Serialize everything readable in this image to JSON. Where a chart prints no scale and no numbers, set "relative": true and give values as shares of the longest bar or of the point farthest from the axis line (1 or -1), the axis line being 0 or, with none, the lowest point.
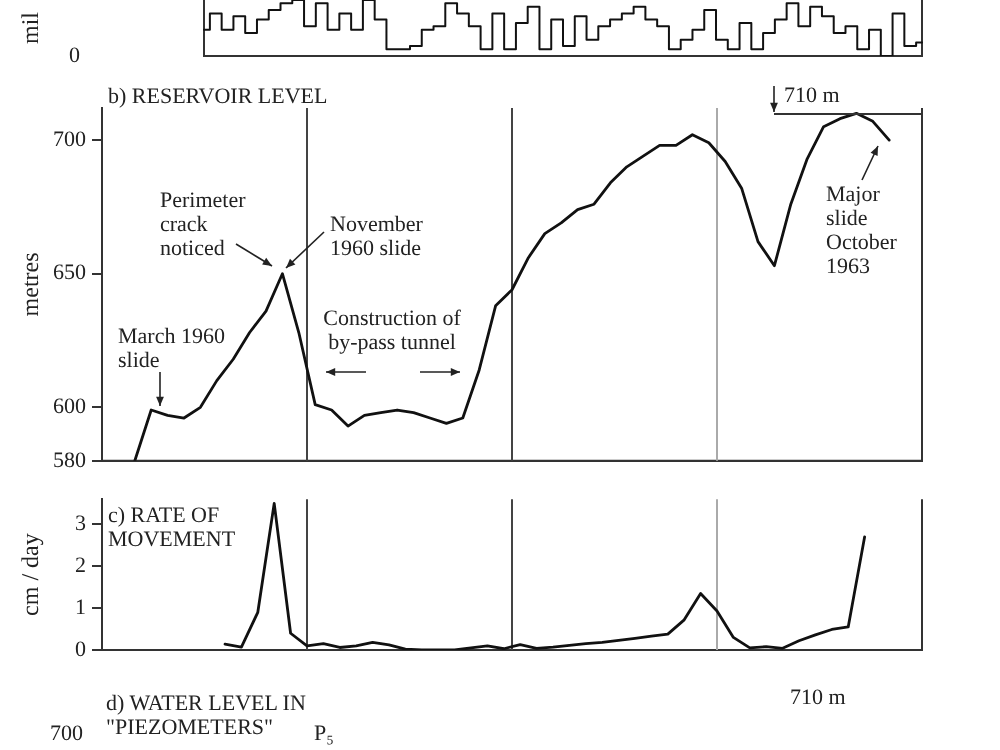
{
  "chart_data": [
    {
      "type": "step",
      "ylabel": "mil",
      "relative": true,
      "tick_labels": false,
      "color": "#111111",
      "annotations": [
        "0"
      ],
      "categories": [
        null,
        null,
        null,
        null,
        null,
        null,
        null,
        null,
        null,
        null,
        null,
        null,
        null,
        null,
        null,
        null,
        null,
        null,
        null,
        null,
        null,
        null,
        null,
        null,
        null,
        null,
        null,
        null,
        null,
        null,
        null,
        null,
        null,
        null,
        null,
        null,
        null,
        null,
        null,
        null,
        null,
        null,
        null,
        null,
        null,
        null,
        null,
        null,
        null,
        null,
        null,
        null,
        null,
        null,
        null,
        null,
        null,
        null,
        null,
        null,
        null,
        null
      ],
      "values": [
        0.47,
        0.76,
        0.47,
        0.71,
        0.41,
        0.65,
        0.82,
        0.94,
        1,
        0.53,
        0.94,
        0.47,
        0.76,
        0.47,
        1,
        0.65,
        0.12,
        0.12,
        0.18,
        0.47,
        0.53,
        0.94,
        0.76,
        0.53,
        0.12,
        0.76,
        0.12,
        0.59,
        0.88,
        0.12,
        0.65,
        0.18,
        0.71,
        0.29,
        0.53,
        0.65,
        0.76,
        0.88,
        0.65,
        0.53,
        0.12,
        0.29,
        0.47,
        0.82,
        0.29,
        0.12,
        0.59,
        0.12,
        0.41,
        0.65,
        0.94,
        0.53,
        0.88,
        0.71,
        0.41,
        0.53,
        0.12,
        0.47,
        0,
        0.76,
        0.18,
        0.24
      ]
    },
    {
      "type": "line",
      "title": "b) RESERVOIR LEVEL",
      "ylabel": "metres",
      "tick_labels": "y",
      "color": "#111111",
      "ylim": [
        580,
        712
      ],
      "yticks": [
        580,
        600,
        650,
        700
      ],
      "categories": [
        null,
        null,
        null,
        null,
        null,
        null,
        null,
        null,
        null,
        null,
        null,
        null,
        null,
        null,
        null,
        null,
        null,
        null,
        null,
        null,
        null,
        null,
        null,
        null,
        null,
        null,
        null,
        null,
        null,
        null,
        null,
        null,
        null,
        null,
        null,
        null,
        null,
        null,
        null,
        null,
        null,
        null,
        null,
        null,
        null,
        null,
        null,
        null,
        null,
        null,
        null
      ],
      "values": [
        null,
        null,
        580,
        599,
        597,
        596,
        600,
        610,
        618,
        628,
        636,
        650,
        628,
        601,
        599,
        593,
        597,
        598,
        599,
        598,
        596,
        594,
        596,
        614,
        638,
        644,
        656,
        665,
        669,
        674,
        676,
        684,
        690,
        694,
        698,
        698,
        702,
        699,
        692,
        682,
        662,
        653,
        676,
        693,
        705,
        708,
        710,
        707,
        700,
        null,
        null
      ],
      "annotations": [
        "March 1960 slide",
        "Perimeter crack noticed",
        "November 1960 slide",
        "Construction of by-pass tunnel",
        "Major slide October 1963",
        "710 m"
      ]
    },
    {
      "type": "line",
      "title": "c) RATE OF MOVEMENT",
      "ylabel": "cm / day",
      "tick_labels": "y",
      "color": "#111111",
      "ylim": [
        0,
        3.6
      ],
      "yticks": [
        0,
        1,
        2,
        3
      ],
      "categories": [
        null,
        null,
        null,
        null,
        null,
        null,
        null,
        null,
        null,
        null,
        null,
        null,
        null,
        null,
        null,
        null,
        null,
        null,
        null,
        null,
        null,
        null,
        null,
        null,
        null,
        null,
        null,
        null,
        null,
        null,
        null,
        null,
        null,
        null,
        null,
        null,
        null,
        null,
        null,
        null,
        null,
        null,
        null,
        null,
        null,
        null,
        null,
        null,
        null,
        null
      ],
      "values": [
        null,
        null,
        null,
        null,
        null,
        null,
        null,
        0.14,
        0.07,
        0.9,
        3.5,
        0.4,
        0.1,
        0.15,
        0.06,
        0.1,
        0.18,
        0.12,
        0.02,
        0,
        0,
        0,
        0.05,
        0.1,
        0.03,
        0.13,
        0.04,
        0.07,
        0.11,
        0.15,
        0.18,
        0.23,
        0.28,
        0.33,
        0.38,
        0.72,
        1.35,
        0.93,
        0.3,
        0.05,
        0.08,
        0.04,
        0.22,
        0.36,
        0.49,
        0.55,
        2.7,
        null,
        null,
        null
      ]
    },
    {
      "type": "other",
      "title": "d) WATER LEVEL IN \"PIEZOMETERS\"",
      "annotations": [
        "700",
        "P₅",
        "710 m"
      ]
    }
  ]
}
